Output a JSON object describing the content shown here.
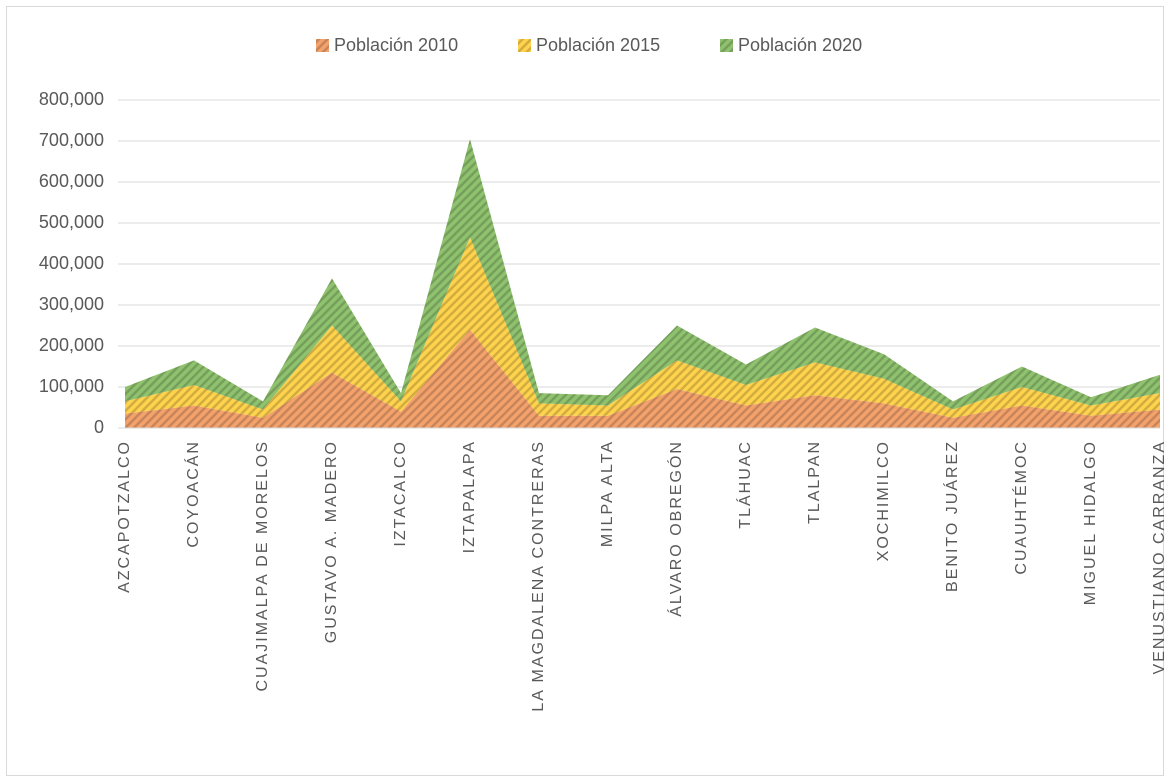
{
  "chart_data": {
    "type": "stacked_area",
    "categories": [
      "AZCAPOTZALCO",
      "COYOACÁN",
      "CUAJIMALPA DE MORELOS",
      "GUSTAVO A. MADERO",
      "IZTACALCO",
      "IZTAPALAPA",
      "LA MAGDALENA CONTRERAS",
      "MILPA ALTA",
      "ÁLVARO OBREGÓN",
      "TLÁHUAC",
      "TLALPAN",
      "XOCHIMILCO",
      "BENITO JUÁREZ",
      "CUAUHTÉMOC",
      "MIGUEL HIDALGO",
      "VENUSTIANO CARRANZA"
    ],
    "series": [
      {
        "name": "Población 2010",
        "color": "#f4a26c",
        "values": [
          35000,
          55000,
          25000,
          135000,
          40000,
          240000,
          30000,
          30000,
          95000,
          55000,
          80000,
          60000,
          25000,
          55000,
          30000,
          45000
        ]
      },
      {
        "name": "Población 2015",
        "color": "#ffd34d",
        "values": [
          30000,
          50000,
          20000,
          115000,
          25000,
          225000,
          30000,
          25000,
          70000,
          50000,
          80000,
          60000,
          20000,
          45000,
          25000,
          40000
        ]
      },
      {
        "name": "Población 2020",
        "color": "#8fc26e",
        "values": [
          35000,
          60000,
          20000,
          115000,
          20000,
          240000,
          25000,
          25000,
          85000,
          50000,
          85000,
          60000,
          20000,
          50000,
          20000,
          45000
        ]
      }
    ],
    "ylim": [
      0,
      800000
    ],
    "yticks": [
      0,
      {
        "value": 100000,
        "label": "100,000"
      },
      {
        "value": 200000,
        "label": "200,000"
      },
      {
        "value": 300000,
        "label": "300,000"
      },
      {
        "value": 400000,
        "label": "400,000"
      },
      {
        "value": 500000,
        "label": "500,000"
      },
      {
        "value": 600000,
        "label": "600,000"
      },
      {
        "value": 700000,
        "label": "700,000"
      },
      {
        "value": 800000,
        "label": "800,000"
      }
    ],
    "grid": true,
    "legend": "top"
  }
}
